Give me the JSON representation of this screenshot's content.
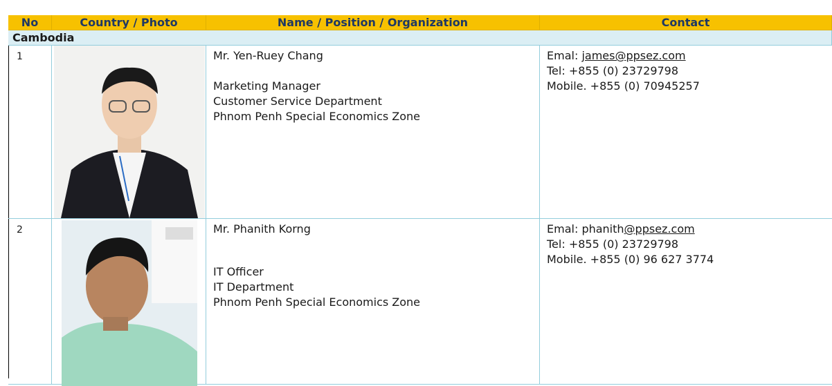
{
  "table": {
    "headers": [
      "No",
      "Country / Photo",
      "Name / Position / Organization",
      "Contact"
    ],
    "section": "Cambodia",
    "rows": [
      {
        "no": "1",
        "name": "Mr. Yen-Ruey Chang",
        "position": "Marketing Manager",
        "department": "Customer Service Department",
        "organization": "Phnom Penh Special Economics Zone",
        "email": {
          "label": "Emal:",
          "parts": [
            {
              "link": "james@ppsez.com"
            }
          ]
        },
        "tel": "Tel: +855 (0) 23729798",
        "mobile": "Mobile. +855 (0) 70945257"
      },
      {
        "no": "2",
        "name": "Mr. Phanith Korng",
        "position": "IT Officer",
        "department": "IT Department",
        "organization": "Phnom Penh Special Economics Zone",
        "email": {
          "label": "Emal:",
          "parts": [
            {
              "text": "phanith"
            },
            {
              "link": "@ppsez.com"
            }
          ]
        },
        "tel": "Tel: +855 (0) 23729798",
        "mobile": "Mobile. +855 (0) 96 627 3774"
      }
    ]
  }
}
